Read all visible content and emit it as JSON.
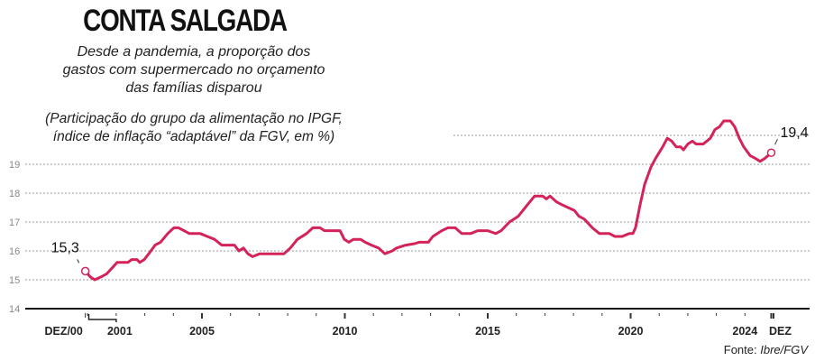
{
  "title": "CONTA SALGADA",
  "subtitle": [
    "Desde a pandemia, a proporção dos",
    "gastos com supermercado no orçamento",
    "das famílias disparou"
  ],
  "note": [
    "(Participação do grupo da alimentação no IPGF,",
    "índice de inflação “adaptável” da FGV, em %)"
  ],
  "source_label": "Fonte:",
  "source": "Ibre/FGV",
  "colors": {
    "line": "#d42359",
    "grid": "#999999",
    "axis": "#111111"
  },
  "chart_data": {
    "type": "line",
    "title": "CONTA SALGADA",
    "xlabel": "",
    "ylabel": "%",
    "ylim": [
      14,
      20.6
    ],
    "xlim": [
      1999.8,
      2025.3
    ],
    "yticks": [
      14,
      15,
      16,
      17,
      18,
      19
    ],
    "gridlines": [
      15,
      16,
      17,
      18,
      19,
      20
    ],
    "xtick_labels": [
      {
        "t": 2000.92,
        "label": "DEZ/00"
      },
      {
        "t": 2002.0,
        "label": "2001"
      },
      {
        "t": 2005,
        "label": "2005"
      },
      {
        "t": 2010,
        "label": "2010"
      },
      {
        "t": 2015,
        "label": "2015"
      },
      {
        "t": 2020,
        "label": "2020"
      },
      {
        "t": 2024,
        "label": "2024"
      },
      {
        "t": 2024.92,
        "label": "DEZ"
      }
    ],
    "annotations": [
      {
        "t": 2000.92,
        "value": 15.3,
        "label": "15,3"
      },
      {
        "t": 2024.92,
        "value": 19.4,
        "label": "19,4"
      }
    ],
    "series": [
      {
        "name": "Participação da alimentação no IPGF",
        "points": [
          [
            2000.92,
            15.3
          ],
          [
            2001.09,
            15.1
          ],
          [
            2001.25,
            15.0
          ],
          [
            2001.47,
            15.1
          ],
          [
            2001.66,
            15.2
          ],
          [
            2001.85,
            15.4
          ],
          [
            2002.03,
            15.6
          ],
          [
            2002.41,
            15.6
          ],
          [
            2002.54,
            15.7
          ],
          [
            2002.73,
            15.7
          ],
          [
            2002.82,
            15.6
          ],
          [
            2002.98,
            15.7
          ],
          [
            2003.14,
            15.9
          ],
          [
            2003.36,
            16.2
          ],
          [
            2003.55,
            16.3
          ],
          [
            2003.8,
            16.6
          ],
          [
            2004.02,
            16.8
          ],
          [
            2004.18,
            16.8
          ],
          [
            2004.37,
            16.7
          ],
          [
            2004.56,
            16.6
          ],
          [
            2004.94,
            16.6
          ],
          [
            2005.19,
            16.5
          ],
          [
            2005.44,
            16.4
          ],
          [
            2005.69,
            16.2
          ],
          [
            2006.14,
            16.2
          ],
          [
            2006.29,
            16.0
          ],
          [
            2006.45,
            16.1
          ],
          [
            2006.61,
            15.9
          ],
          [
            2006.77,
            15.8
          ],
          [
            2007.02,
            15.9
          ],
          [
            2007.87,
            15.9
          ],
          [
            2008.09,
            16.1
          ],
          [
            2008.34,
            16.4
          ],
          [
            2008.66,
            16.6
          ],
          [
            2008.88,
            16.8
          ],
          [
            2009.13,
            16.8
          ],
          [
            2009.29,
            16.7
          ],
          [
            2009.83,
            16.7
          ],
          [
            2009.98,
            16.4
          ],
          [
            2010.14,
            16.3
          ],
          [
            2010.3,
            16.4
          ],
          [
            2010.55,
            16.4
          ],
          [
            2010.71,
            16.3
          ],
          [
            2010.93,
            16.2
          ],
          [
            2011.18,
            16.1
          ],
          [
            2011.4,
            15.9
          ],
          [
            2011.66,
            16.0
          ],
          [
            2011.81,
            16.1
          ],
          [
            2012.13,
            16.2
          ],
          [
            2012.44,
            16.25
          ],
          [
            2012.6,
            16.3
          ],
          [
            2012.92,
            16.3
          ],
          [
            2013.08,
            16.5
          ],
          [
            2013.39,
            16.7
          ],
          [
            2013.61,
            16.8
          ],
          [
            2013.86,
            16.8
          ],
          [
            2014.09,
            16.6
          ],
          [
            2014.4,
            16.6
          ],
          [
            2014.65,
            16.7
          ],
          [
            2015.0,
            16.7
          ],
          [
            2015.28,
            16.6
          ],
          [
            2015.47,
            16.7
          ],
          [
            2015.76,
            17.0
          ],
          [
            2016.07,
            17.2
          ],
          [
            2016.39,
            17.6
          ],
          [
            2016.64,
            17.9
          ],
          [
            2016.92,
            17.9
          ],
          [
            2017.05,
            17.8
          ],
          [
            2017.18,
            17.9
          ],
          [
            2017.4,
            17.7
          ],
          [
            2017.59,
            17.6
          ],
          [
            2017.81,
            17.5
          ],
          [
            2018.03,
            17.4
          ],
          [
            2018.19,
            17.2
          ],
          [
            2018.38,
            17.1
          ],
          [
            2018.66,
            16.8
          ],
          [
            2018.91,
            16.6
          ],
          [
            2019.26,
            16.6
          ],
          [
            2019.45,
            16.5
          ],
          [
            2019.7,
            16.5
          ],
          [
            2019.95,
            16.6
          ],
          [
            2020.08,
            16.6
          ],
          [
            2020.17,
            16.8
          ],
          [
            2020.33,
            17.6
          ],
          [
            2020.49,
            18.3
          ],
          [
            2020.71,
            18.9
          ],
          [
            2020.87,
            19.2
          ],
          [
            2021.12,
            19.6
          ],
          [
            2021.28,
            19.9
          ],
          [
            2021.44,
            19.8
          ],
          [
            2021.6,
            19.6
          ],
          [
            2021.75,
            19.6
          ],
          [
            2021.85,
            19.5
          ],
          [
            2022.0,
            19.7
          ],
          [
            2022.16,
            19.8
          ],
          [
            2022.29,
            19.7
          ],
          [
            2022.54,
            19.7
          ],
          [
            2022.79,
            19.9
          ],
          [
            2022.95,
            20.2
          ],
          [
            2023.11,
            20.3
          ],
          [
            2023.26,
            20.5
          ],
          [
            2023.49,
            20.5
          ],
          [
            2023.64,
            20.3
          ],
          [
            2023.8,
            19.9
          ],
          [
            2023.96,
            19.6
          ],
          [
            2024.18,
            19.3
          ],
          [
            2024.37,
            19.2
          ],
          [
            2024.53,
            19.1
          ],
          [
            2024.69,
            19.2
          ],
          [
            2024.92,
            19.4
          ]
        ]
      }
    ]
  }
}
